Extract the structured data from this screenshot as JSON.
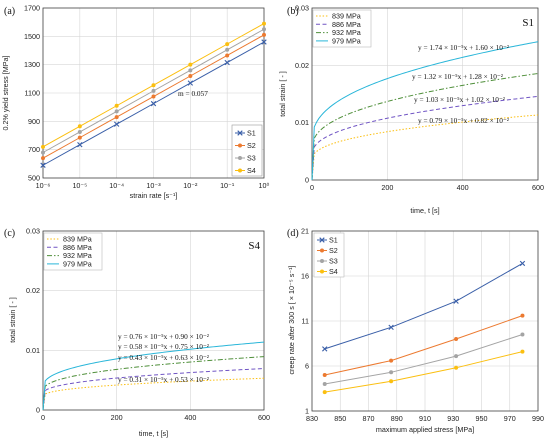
{
  "chart_data": [
    {
      "panel": "(a)",
      "type": "line",
      "xscale": "log",
      "xlabel": "strain rate [s⁻¹]",
      "ylabel": "0.2% yield stress [MPa]",
      "xlim": [
        1e-06,
        1
      ],
      "ylim": [
        500,
        1700
      ],
      "xticks": [
        "10⁻⁶",
        "10⁻⁵",
        "10⁻⁴",
        "10⁻³",
        "10⁻²",
        "10⁻¹",
        "10⁰"
      ],
      "yticks": [
        500,
        700,
        900,
        1100,
        1300,
        1500,
        1700
      ],
      "x": [
        1e-06,
        1e-05,
        0.0001,
        0.001,
        0.01,
        0.1,
        1
      ],
      "series": [
        {
          "name": "S1",
          "color": "#3a5fa8",
          "marker": "x",
          "values": [
            590,
            735,
            880,
            1025,
            1170,
            1315,
            1460
          ]
        },
        {
          "name": "S2",
          "color": "#ec7a30",
          "marker": "o",
          "values": [
            640,
            785,
            930,
            1075,
            1220,
            1365,
            1510
          ]
        },
        {
          "name": "S3",
          "color": "#a4a4a4",
          "marker": "o",
          "values": [
            680,
            825,
            970,
            1115,
            1260,
            1405,
            1550
          ]
        },
        {
          "name": "S4",
          "color": "#fbbf10",
          "marker": "o",
          "values": [
            720,
            865,
            1010,
            1155,
            1300,
            1445,
            1590
          ]
        }
      ],
      "annotations": [
        {
          "text": "m = 0.057"
        }
      ],
      "legend_position": "bottom-right"
    },
    {
      "panel": "(b)",
      "tag": "S1",
      "type": "line",
      "xlabel": "time, t [s]",
      "ylabel": "total strain [ - ]",
      "xlim": [
        0,
        600
      ],
      "ylim": [
        0,
        0.03
      ],
      "xticks": [
        0,
        200,
        400,
        600
      ],
      "yticks": [
        "0",
        "0.01",
        "0.02",
        "0.03"
      ],
      "series": [
        {
          "name": "839 MPa",
          "color": "#fbbf10",
          "dash": "dot",
          "a": 0.0079,
          "b": 0.0082,
          "equation": "y = 0.79 × 10⁻⁵x + 0.82 × 10⁻²"
        },
        {
          "name": "886 MPa",
          "color": "#7055c4",
          "dash": "dash",
          "a": 0.0103,
          "b": 0.0102,
          "equation": "y = 1.03 × 10⁻⁵x + 1.02 × 10⁻²"
        },
        {
          "name": "932 MPa",
          "color": "#4f8f3a",
          "dash": "dashdot",
          "a": 0.0132,
          "b": 0.0128,
          "equation": "y = 1.32 × 10⁻⁵x + 1.28 × 10⁻²"
        },
        {
          "name": "979 MPa",
          "color": "#29b6d9",
          "dash": "solid",
          "a": 0.0174,
          "b": 0.016,
          "equation": "y = 1.74 × 10⁻⁵x + 1.60 × 10⁻²"
        }
      ],
      "legend_position": "top-left"
    },
    {
      "panel": "(c)",
      "tag": "S4",
      "type": "line",
      "xlabel": "time, t [s]",
      "ylabel": "total strain [ - ]",
      "xlim": [
        0,
        600
      ],
      "ylim": [
        0,
        0.03
      ],
      "xticks": [
        0,
        200,
        400,
        600
      ],
      "yticks": [
        "0",
        "0.01",
        "0.02",
        "0.03"
      ],
      "series": [
        {
          "name": "839 MPa",
          "color": "#fbbf10",
          "dash": "dot",
          "a": 0.0031,
          "b": 0.0053,
          "equation": "y = 0.31 × 10⁻⁵x + 0.53 × 10⁻²"
        },
        {
          "name": "886 MPa",
          "color": "#7055c4",
          "dash": "dash",
          "a": 0.0043,
          "b": 0.0063,
          "equation": "y = 0.43 × 10⁻⁵x + 0.63 × 10⁻²"
        },
        {
          "name": "932 MPa",
          "color": "#4f8f3a",
          "dash": "dashdot",
          "a": 0.0058,
          "b": 0.0075,
          "equation": "y = 0.58 × 10⁻⁵x + 0.75 × 10⁻²"
        },
        {
          "name": "979 MPa",
          "color": "#29b6d9",
          "dash": "solid",
          "a": 0.0076,
          "b": 0.009,
          "equation": "y = 0.76 × 10⁻⁵x + 0.90 × 10⁻²"
        }
      ],
      "legend_position": "top-left"
    },
    {
      "panel": "(d)",
      "type": "line",
      "xlabel": "maximum applied stress [MPa]",
      "ylabel": "creep rate after 300 s [ × 10⁻⁵ s⁻¹]",
      "xlim": [
        830,
        990
      ],
      "ylim": [
        1,
        21
      ],
      "xticks": [
        830,
        850,
        870,
        890,
        910,
        930,
        950,
        970,
        990
      ],
      "yticks": [
        1,
        6,
        11,
        16,
        21
      ],
      "x": [
        839,
        886,
        932,
        979
      ],
      "series": [
        {
          "name": "S1",
          "color": "#3a5fa8",
          "marker": "x",
          "values": [
            7.9,
            10.3,
            13.2,
            17.4
          ]
        },
        {
          "name": "S2",
          "color": "#ec7a30",
          "marker": "o",
          "values": [
            5.0,
            6.6,
            9.0,
            11.6
          ]
        },
        {
          "name": "S3",
          "color": "#a4a4a4",
          "marker": "o",
          "values": [
            4.0,
            5.3,
            7.1,
            9.5
          ]
        },
        {
          "name": "S4",
          "color": "#fbbf10",
          "marker": "o",
          "values": [
            3.1,
            4.3,
            5.8,
            7.6
          ]
        }
      ],
      "legend_position": "top-left"
    }
  ]
}
